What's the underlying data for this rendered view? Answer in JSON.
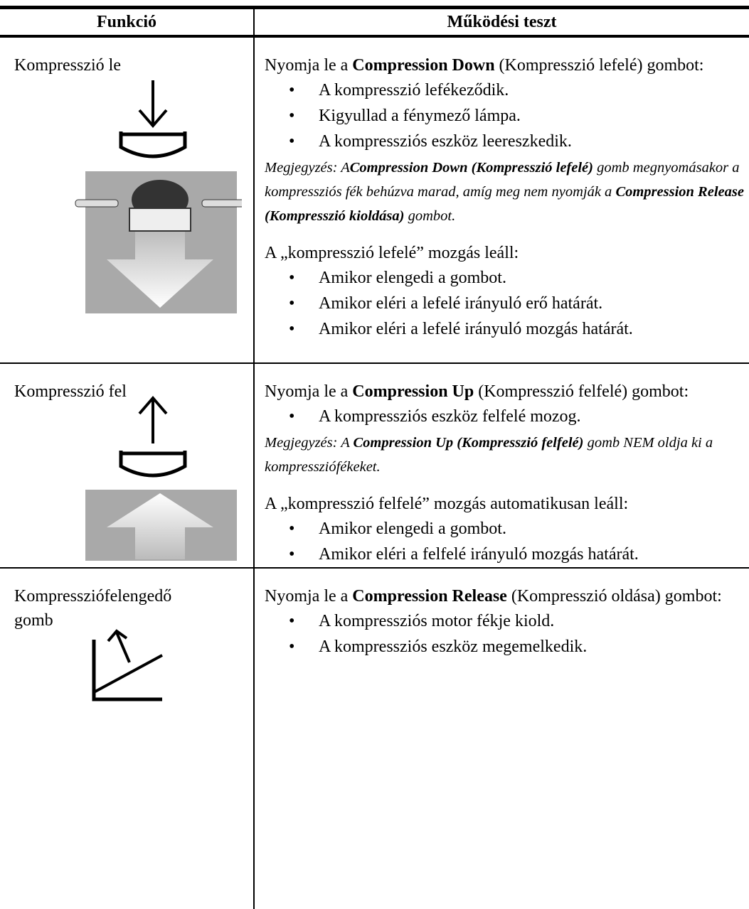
{
  "header": [
    "Funkció",
    "Működési teszt"
  ],
  "rows": [
    {
      "function": [
        "Kompresszió le"
      ],
      "test": [
        {
          "kind": "para",
          "runs": [
            {
              "text": "Nyomja le a "
            },
            {
              "text": "Compression Down",
              "bold": true
            },
            {
              "text": " (Kompresszió lefelé) gombot:"
            }
          ]
        },
        {
          "kind": "item",
          "runs": [
            {
              "text": "A kompresszió lefékeződik."
            }
          ]
        },
        {
          "kind": "item",
          "runs": [
            {
              "text": "Kigyullad a fénymező lámpa."
            }
          ]
        },
        {
          "kind": "item",
          "runs": [
            {
              "text": "A kompressziós eszköz leereszkedik."
            }
          ]
        },
        {
          "kind": "note",
          "runs": [
            {
              "text": "Megjegyzés: A"
            },
            {
              "text": "Compression Down (Kompresszió lefelé)",
              "bold": true
            },
            {
              "text": " gomb megnyomásakor a kompressziós fék behúzva marad, amíg meg nem nyomják a "
            },
            {
              "text": "Compression Release (Kompresszió kioldása)",
              "bold": true
            },
            {
              "text": " gombot."
            }
          ]
        },
        {
          "kind": "para",
          "runs": [
            {
              "text": "A „kompresszió lefelé” mozgás leáll:"
            }
          ]
        },
        {
          "kind": "item",
          "runs": [
            {
              "text": "Amikor elengedi a gombot."
            }
          ]
        },
        {
          "kind": "item",
          "runs": [
            {
              "text": "Amikor eléri a lefelé irányuló erő határát."
            }
          ]
        },
        {
          "kind": "item",
          "runs": [
            {
              "text": "Amikor eléri a lefelé irányuló mozgás határát."
            }
          ]
        }
      ]
    },
    {
      "function": [
        "Kompresszió fel"
      ],
      "test": [
        {
          "kind": "para",
          "runs": [
            {
              "text": "Nyomja le a "
            },
            {
              "text": "Compression Up",
              "bold": true
            },
            {
              "text": " (Kompresszió felfelé) gombot:"
            }
          ]
        },
        {
          "kind": "item",
          "runs": [
            {
              "text": "A kompressziós eszköz felfelé mozog."
            }
          ]
        },
        {
          "kind": "note",
          "runs": [
            {
              "text": "Megjegyzés: A "
            },
            {
              "text": "Compression Up (Kompresszió felfelé)",
              "bold": true
            },
            {
              "text": " gomb NEM oldja ki a kompressziófékeket."
            }
          ]
        },
        {
          "kind": "para",
          "runs": [
            {
              "text": "A „kompresszió felfelé” mozgás automatikusan leáll:"
            }
          ]
        },
        {
          "kind": "item",
          "runs": [
            {
              "text": "Amikor elengedi a gombot."
            }
          ]
        },
        {
          "kind": "item",
          "runs": [
            {
              "text": "Amikor eléri a felfelé irányuló mozgás határát."
            }
          ]
        }
      ]
    },
    {
      "function": [
        "Kompresszió­felengedő",
        "gomb"
      ],
      "test": [
        {
          "kind": "para",
          "runs": [
            {
              "text": "Nyomja le a "
            },
            {
              "text": "Compression Release",
              "bold": true
            },
            {
              "text": " (Kompresszió oldása) gombot:"
            }
          ]
        },
        {
          "kind": "item",
          "runs": [
            {
              "text": "A kompressziós motor fékje kiold."
            }
          ]
        },
        {
          "kind": "item",
          "runs": [
            {
              "text": "A kompressziós eszköz megemelkedik."
            }
          ]
        }
      ]
    }
  ]
}
